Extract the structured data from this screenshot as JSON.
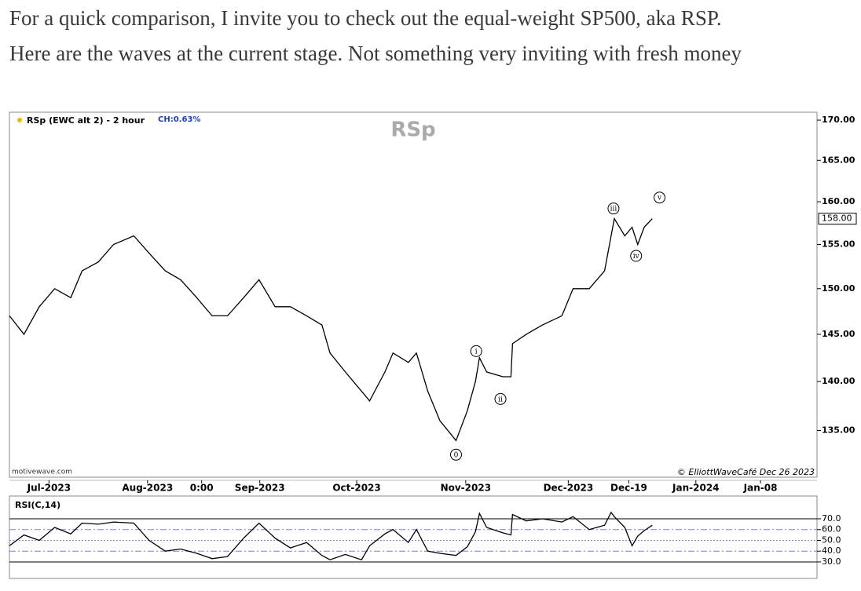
{
  "paragraphs": [
    "For a quick comparison, I invite you to check out the equal-weight SP500, aka RSP.",
    "Here are the waves at the current stage. Not something very inviting with fresh money"
  ],
  "chart_data": [
    {
      "type": "line",
      "title": "RSp (EWC alt 2) - 2 hour",
      "subtitle": "CH:0.63%",
      "watermark": "RSp",
      "source": "motivewave.com",
      "credit": "© ElliottWaveCafé Dec 26 2023",
      "log_scale": true,
      "grid": false,
      "x": [
        0,
        1.8,
        3.7,
        5.6,
        7.6,
        9,
        11,
        12.9,
        15.4,
        17.3,
        19.3,
        21.2,
        23.2,
        25.1,
        27,
        29,
        30.9,
        32.9,
        34.8,
        36.8,
        38.7,
        39.7,
        41.6,
        43.6,
        44.6,
        46.5,
        47.5,
        49.4,
        50.4,
        51.8,
        53.3,
        55.3,
        56.7,
        57.7,
        58.2,
        59.1,
        61.1,
        62.1,
        62.3,
        64,
        66,
        68.4,
        69.8,
        71.8,
        73.7,
        74.5,
        74.9,
        76.2,
        77.1,
        77.8,
        78.6,
        79.6
      ],
      "xlim": [
        0,
        100
      ],
      "xticks": [
        {
          "value": 4.9,
          "label": "Jul-2023"
        },
        {
          "value": 17.1,
          "label": "Aug-2023"
        },
        {
          "value": 23.8,
          "label": "0:00"
        },
        {
          "value": 31.0,
          "label": "Sep-2023"
        },
        {
          "value": 43.0,
          "label": "Oct-2023"
        },
        {
          "value": 56.5,
          "label": "Nov-2023"
        },
        {
          "value": 69.2,
          "label": "Dec-2023"
        },
        {
          "value": 76.7,
          "label": "Dec-19"
        },
        {
          "value": 85.0,
          "label": "Jan-2024"
        },
        {
          "value": 93.0,
          "label": "Jan-08"
        }
      ],
      "ylim": [
        130.4,
        171.0
      ],
      "yticks": [
        {
          "value": 135,
          "label": "135.00"
        },
        {
          "value": 140,
          "label": "140.00"
        },
        {
          "value": 145,
          "label": "145.00"
        },
        {
          "value": 150,
          "label": "150.00"
        },
        {
          "value": 155,
          "label": "155.00"
        },
        {
          "value": 160,
          "label": "160.00"
        },
        {
          "value": 165,
          "label": "165.00"
        },
        {
          "value": 170,
          "label": "170.00"
        }
      ],
      "last_price": {
        "value": 158,
        "label": "158.00"
      },
      "series": [
        {
          "name": "RSp",
          "color": "#000000",
          "values": [
            147,
            145,
            148,
            150,
            149,
            152,
            153,
            155,
            156,
            154,
            152,
            151,
            149,
            147,
            147,
            149,
            151,
            148,
            148,
            147,
            146,
            143,
            141,
            139,
            138,
            141,
            143,
            142,
            143,
            139,
            136,
            134,
            137,
            140,
            142.5,
            141,
            140.5,
            140.5,
            144,
            145,
            146,
            147,
            150,
            150,
            152,
            156,
            158,
            156,
            157,
            155,
            157,
            158
          ]
        }
      ],
      "annotations": [
        {
          "text": "0",
          "x": 55.3,
          "y": 132.6
        },
        {
          "text": "i",
          "x": 57.8,
          "y": 143.2
        },
        {
          "text": "ii",
          "x": 60.8,
          "y": 138.2
        },
        {
          "text": "iii",
          "x": 74.8,
          "y": 159.2
        },
        {
          "text": "iv",
          "x": 77.6,
          "y": 153.7
        },
        {
          "text": "v",
          "x": 80.5,
          "y": 160.5
        }
      ]
    },
    {
      "type": "line",
      "title": "RSI(C,14)",
      "x": [
        0,
        1.8,
        3.7,
        5.6,
        7.6,
        9,
        11,
        12.9,
        15.4,
        17.3,
        19.3,
        21.2,
        23.2,
        25.1,
        27,
        29,
        30.9,
        32.9,
        34.8,
        36.8,
        38.7,
        39.7,
        41.6,
        43.6,
        44.6,
        46.5,
        47.5,
        49.4,
        50.4,
        51.8,
        53.3,
        55.3,
        56.7,
        57.7,
        58.2,
        59.1,
        61.1,
        62.1,
        62.3,
        64,
        66,
        68.4,
        69.8,
        71.8,
        73.7,
        74.5,
        74.9,
        76.2,
        77.1,
        77.8,
        78.6,
        79.6
      ],
      "xlim": [
        0,
        100
      ],
      "ylim": [
        14.7,
        91.1
      ],
      "yticks": [
        {
          "value": 30,
          "label": "30.0"
        },
        {
          "value": 40,
          "label": "40.0"
        },
        {
          "value": 50,
          "label": "50.0"
        },
        {
          "value": 60,
          "label": "60.0"
        },
        {
          "value": 70,
          "label": "70.0"
        }
      ],
      "series": [
        {
          "name": "RSI",
          "color": "#000000",
          "values": [
            45,
            55,
            50,
            62,
            56,
            66,
            65,
            67,
            66,
            50,
            40,
            42,
            38,
            33,
            35,
            52,
            66,
            52,
            43,
            48,
            36,
            32,
            37,
            32,
            45,
            56,
            60,
            48,
            60,
            40,
            38,
            36,
            44,
            58,
            75,
            62,
            57,
            55,
            74,
            68,
            70,
            67,
            72,
            60,
            64,
            76,
            72,
            62,
            45,
            54,
            59,
            64
          ]
        }
      ]
    }
  ]
}
